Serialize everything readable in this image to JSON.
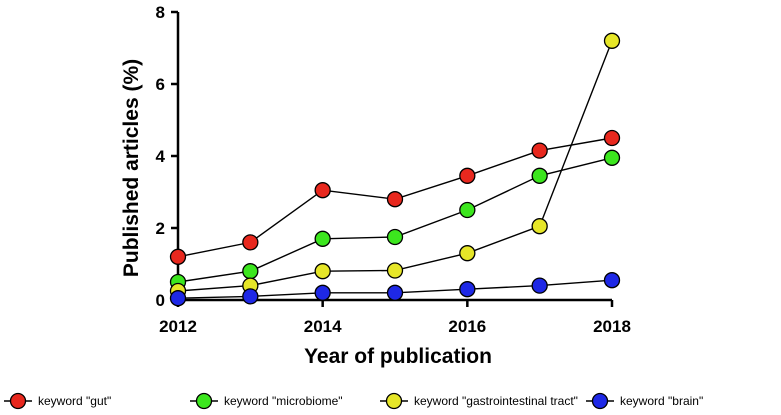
{
  "chart_data": {
    "type": "line",
    "xlabel": "Year of publication",
    "ylabel": "Published articles (%)",
    "xlim": [
      2012,
      2018
    ],
    "ylim": [
      0,
      8
    ],
    "x_ticks": [
      2012,
      2014,
      2016,
      2018
    ],
    "y_ticks": [
      0,
      2,
      4,
      6,
      8
    ],
    "x_tick_labels": [
      "2012",
      "2014",
      "2016",
      "2018"
    ],
    "y_tick_labels": [
      "0",
      "2",
      "4",
      "6",
      "8"
    ],
    "x": [
      2012,
      2013,
      2014,
      2015,
      2016,
      2017,
      2018
    ],
    "legend_position": "bottom",
    "grid": false,
    "series": [
      {
        "name": "keyword \"gut\"",
        "color": "#e8281e",
        "values": [
          1.2,
          1.6,
          3.05,
          2.8,
          3.45,
          4.15,
          4.5
        ]
      },
      {
        "name": "keyword \"microbiome\"",
        "color": "#3ce61e",
        "values": [
          0.5,
          0.8,
          1.7,
          1.75,
          2.5,
          3.45,
          3.95
        ]
      },
      {
        "name": "keyword \"gastrointestinal tract\"",
        "color": "#e6e628",
        "values": [
          0.25,
          0.4,
          0.8,
          0.82,
          1.3,
          2.05,
          7.2
        ]
      },
      {
        "name": "keyword \"brain\"",
        "color": "#1e28e6",
        "values": [
          0.05,
          0.1,
          0.2,
          0.2,
          0.3,
          0.4,
          0.55
        ]
      }
    ]
  }
}
